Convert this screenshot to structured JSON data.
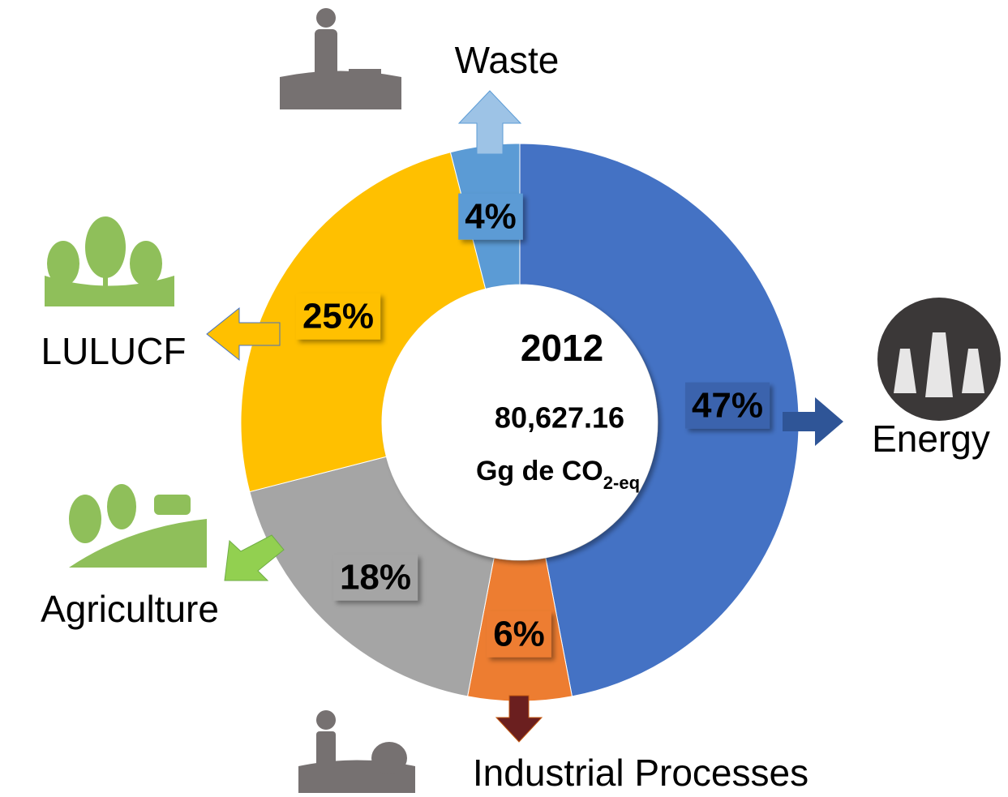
{
  "chart_data": {
    "type": "pie",
    "donut": true,
    "categories": [
      "Energy",
      "Industrial Processes",
      "Agriculture",
      "LULUCF",
      "Waste"
    ],
    "values": [
      47,
      6,
      18,
      25,
      4
    ],
    "value_labels": [
      "47%",
      "6%",
      "18%",
      "25%",
      "4%"
    ],
    "colors": [
      "#4472c4",
      "#ed7d31",
      "#a5a5a5",
      "#ffc000",
      "#5b9bd5"
    ],
    "center_title": "2012",
    "center_value": "80,627.16",
    "center_unit": "Gg de CO",
    "center_unit_subscript": "2-eq"
  }
}
